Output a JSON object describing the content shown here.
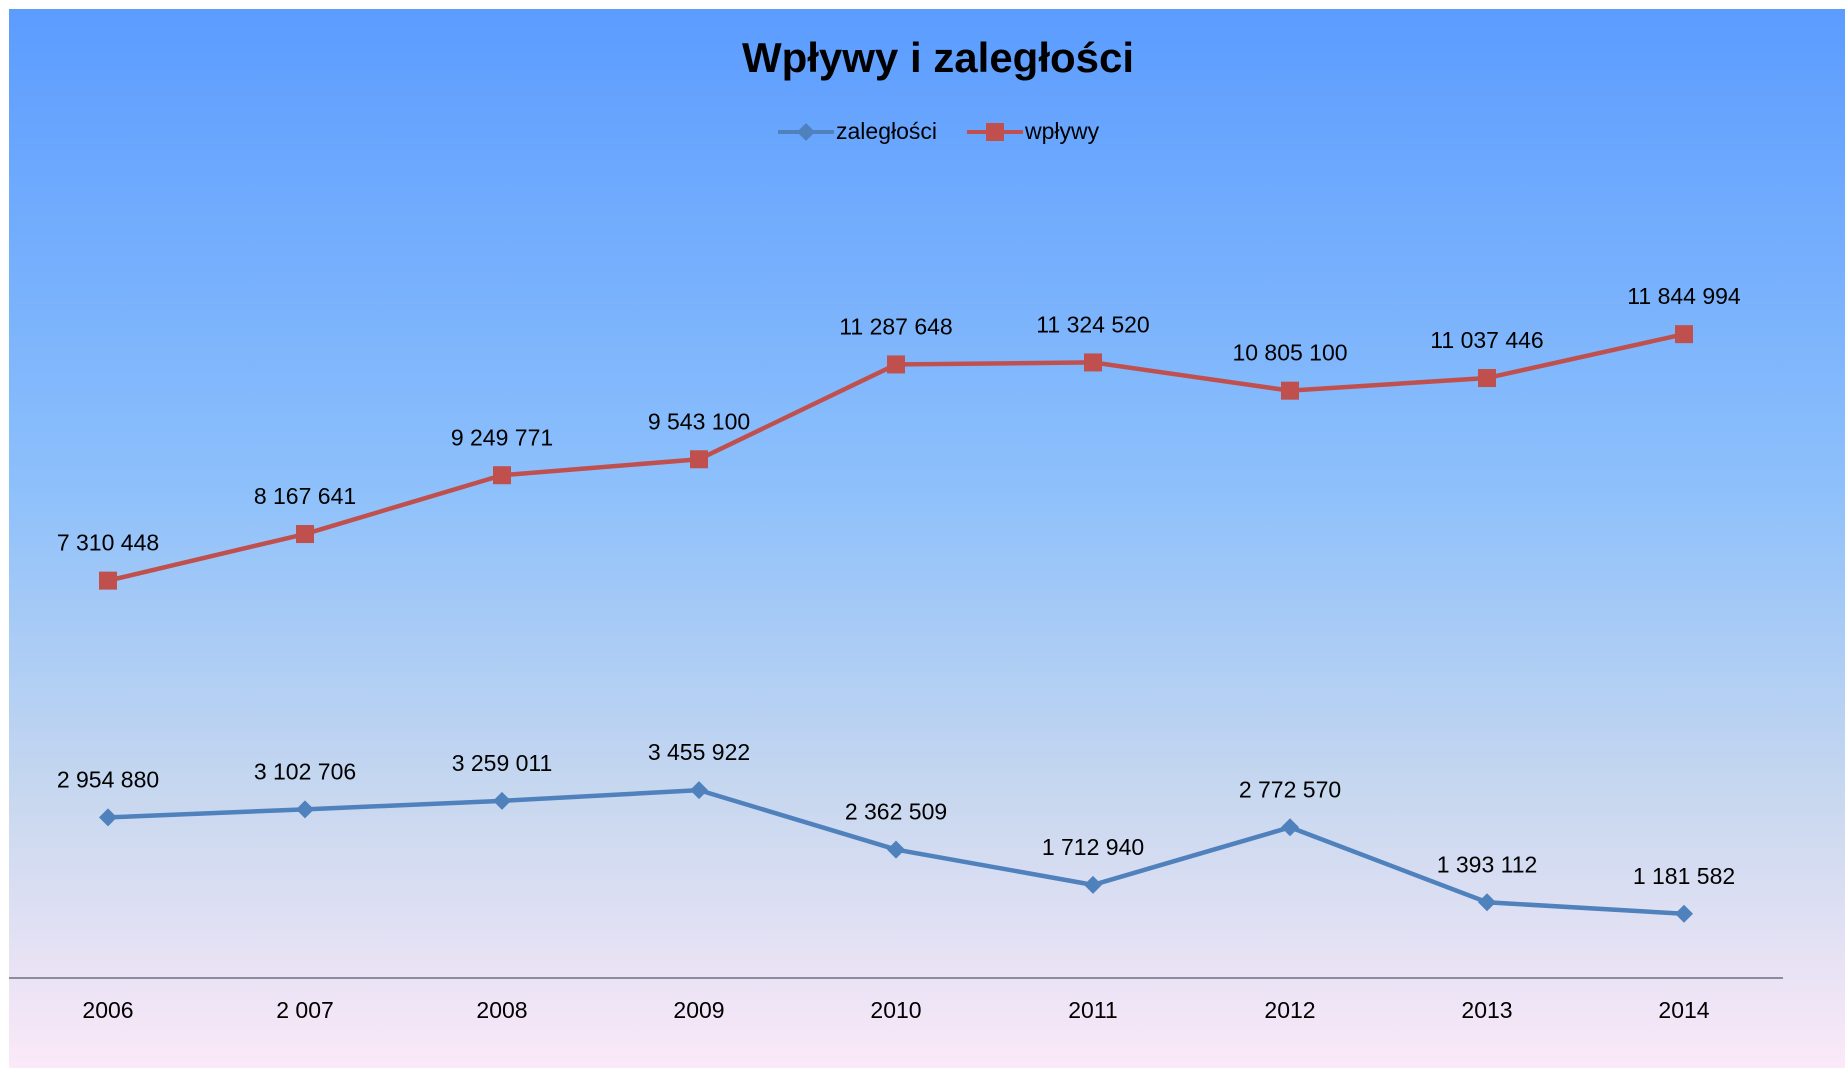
{
  "chart_data": {
    "type": "line",
    "title": "Wpływy i zaległości",
    "categories": [
      "2006",
      "2 007",
      "2008",
      "2009",
      "2010",
      "2011",
      "2012",
      "2013",
      "2014"
    ],
    "ylim": [
      0,
      14000000
    ],
    "legend": "top",
    "series": [
      {
        "name": "zaległości",
        "color": "#4f81bd",
        "marker": "diamond",
        "values": [
          2954880,
          3102706,
          3259011,
          3455922,
          2362509,
          1712940,
          2772570,
          1393112,
          1181582
        ],
        "value_labels": [
          "2 954 880",
          "3 102 706",
          "3 259 011",
          "3 455 922",
          "2 362 509",
          "1 712 940",
          "2 772 570",
          "1 393 112",
          "1 181 582"
        ]
      },
      {
        "name": "wpływy",
        "color": "#c0504d",
        "marker": "square",
        "values": [
          7310448,
          8167641,
          9249771,
          9543100,
          11287648,
          11324520,
          10805100,
          11037446,
          11844994
        ],
        "value_labels": [
          "7 310 448",
          "8 167 641",
          "9 249 771",
          "9 543 100",
          "11 287 648",
          "11 324 520",
          "10 805 100",
          "11 037 446",
          "11 844 994"
        ]
      }
    ]
  }
}
